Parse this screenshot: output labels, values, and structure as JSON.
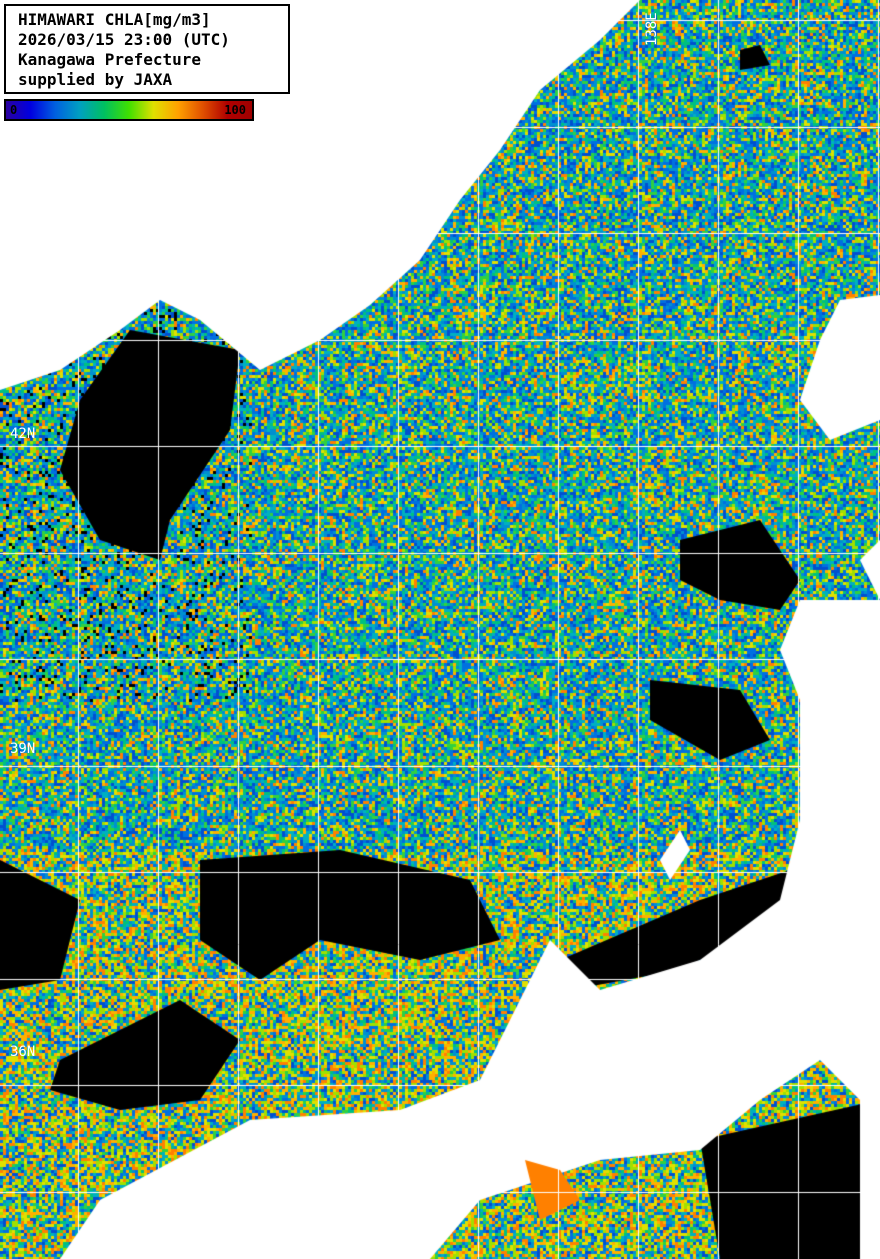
{
  "legend": {
    "lines": [
      "HIMAWARI CHLA[mg/m3]",
      "2026/03/15 23:00 (UTC)",
      "Kanagawa Prefecture",
      "supplied by JAXA"
    ],
    "colorbar": {
      "min": "0",
      "max": "100",
      "colors": [
        "#2a00a0",
        "#0000e0",
        "#0060e0",
        "#00a0c0",
        "#00c060",
        "#40e000",
        "#e0e000",
        "#ffa000",
        "#e05000",
        "#b00000",
        "#a00000"
      ]
    }
  },
  "grid_labels": {
    "lon": "138E",
    "lat": [
      "42N",
      "39N",
      "36N"
    ]
  },
  "colors": {
    "land": "#ffffff",
    "no_data": "#000000",
    "grid": "#ffffff"
  }
}
